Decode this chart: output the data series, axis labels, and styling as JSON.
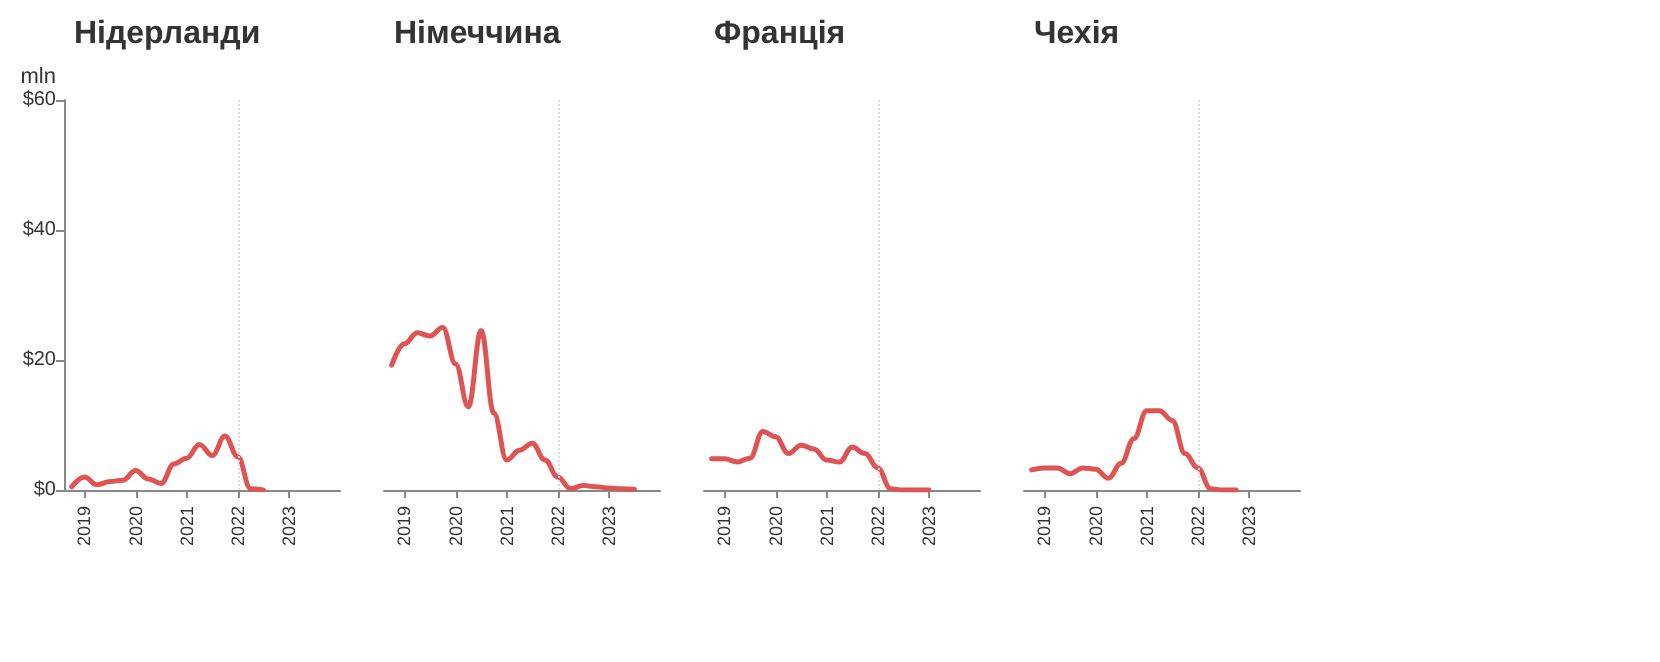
{
  "chart_data": [
    {
      "type": "line",
      "title": "Нідерланди",
      "ylabel": "mln",
      "color": "#e05353",
      "line_style": "solid",
      "marker": "none",
      "grid": false,
      "x": [
        2018.75,
        2019,
        2019.25,
        2019.5,
        2019.75,
        2020,
        2020.25,
        2020.5,
        2020.75,
        2021,
        2021.25,
        2021.5,
        2021.75,
        2022,
        2022.25,
        2022.5
      ],
      "values": [
        0.5,
        2,
        0.8,
        1.3,
        1.5,
        3,
        1.7,
        1,
        4,
        4.9,
        7,
        5.3,
        8.3,
        5.1,
        0.2,
        0
      ],
      "xlim": [
        2018.6,
        2024
      ],
      "xticks": [
        2019,
        2020,
        2021,
        2022,
        2023
      ],
      "ylim": [
        0,
        60
      ],
      "yticks": [
        {
          "value": 0,
          "label": "$0"
        },
        {
          "value": 20,
          "label": "$20"
        },
        {
          "value": 40,
          "label": "$40"
        },
        {
          "value": 60,
          "label": "$60"
        }
      ],
      "ref_lines": [
        {
          "axis": "x",
          "value": 2022,
          "label": null,
          "color": "#dddddd",
          "line_style": "dotted"
        }
      ]
    },
    {
      "type": "line",
      "title": "Німеччина",
      "color": "#e05353",
      "line_style": "solid",
      "marker": "none",
      "grid": false,
      "tick_labels": "x",
      "x": [
        2018.75,
        2019,
        2019.25,
        2019.5,
        2019.75,
        2020,
        2020.25,
        2020.5,
        2020.75,
        2021,
        2021.25,
        2021.5,
        2021.75,
        2022,
        2022.25,
        2022.5,
        2022.75,
        2023,
        2023.25,
        2023.5
      ],
      "values": [
        19.2,
        22.5,
        24.2,
        23.7,
        25,
        19.4,
        12.8,
        24.5,
        11.8,
        4.6,
        6.1,
        7.2,
        4.6,
        2,
        0.2,
        0.7,
        0.5,
        0.3,
        0.2,
        0.1
      ],
      "xlim": [
        2018.6,
        2024
      ],
      "xticks": [
        2019,
        2020,
        2021,
        2022,
        2023
      ],
      "ylim": [
        0,
        60
      ],
      "ref_lines": [
        {
          "axis": "x",
          "value": 2022,
          "label": null,
          "color": "#dddddd",
          "line_style": "dotted"
        }
      ]
    },
    {
      "type": "line",
      "title": "Франція",
      "color": "#e05353",
      "line_style": "solid",
      "marker": "none",
      "grid": false,
      "tick_labels": "x",
      "x": [
        2018.75,
        2019,
        2019.25,
        2019.5,
        2019.75,
        2020,
        2020.25,
        2020.5,
        2020.75,
        2021,
        2021.25,
        2021.5,
        2021.75,
        2022,
        2022.25,
        2022.5,
        2022.75,
        2023
      ],
      "values": [
        4.8,
        4.8,
        4.3,
        4.9,
        9,
        8.2,
        5.6,
        6.9,
        6.3,
        4.6,
        4.3,
        6.6,
        5.6,
        3.4,
        0.2,
        0,
        0,
        0
      ],
      "xlim": [
        2018.6,
        2024
      ],
      "xticks": [
        2019,
        2020,
        2021,
        2022,
        2023
      ],
      "ylim": [
        0,
        60
      ],
      "ref_lines": [
        {
          "axis": "x",
          "value": 2022,
          "label": null,
          "color": "#dddddd",
          "line_style": "dotted"
        }
      ]
    },
    {
      "type": "line",
      "title": "Чехія",
      "color": "#e05353",
      "line_style": "solid",
      "marker": "none",
      "grid": false,
      "tick_labels": "x",
      "x": [
        2018.75,
        2019,
        2019.25,
        2019.5,
        2019.75,
        2020,
        2020.25,
        2020.5,
        2020.75,
        2021,
        2021.25,
        2021.5,
        2021.75,
        2022,
        2022.25,
        2022.5,
        2022.75
      ],
      "values": [
        3.1,
        3.4,
        3.4,
        2.5,
        3.4,
        3.2,
        1.8,
        4.1,
        7.9,
        12.2,
        12.2,
        10.7,
        5.6,
        3.4,
        0.2,
        0,
        0
      ],
      "xlim": [
        2018.6,
        2024
      ],
      "xticks": [
        2019,
        2020,
        2021,
        2022,
        2023
      ],
      "ylim": [
        0,
        60
      ],
      "ref_lines": [
        {
          "axis": "x",
          "value": 2022,
          "label": null,
          "color": "#dddddd",
          "line_style": "dotted"
        }
      ]
    }
  ]
}
